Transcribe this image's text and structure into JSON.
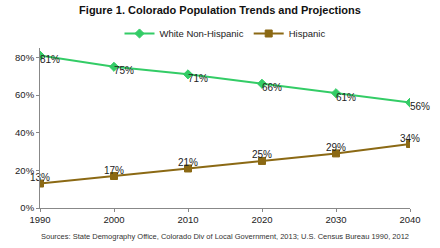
{
  "chart_data": {
    "type": "line",
    "title": "Figure 1. Colorado Population Trends and Projections",
    "x": [
      1990,
      2000,
      2010,
      2020,
      2030,
      2040
    ],
    "xlim": [
      1990,
      2040
    ],
    "xticks": [
      1990,
      2000,
      2010,
      2020,
      2030,
      2040
    ],
    "ylim": [
      0,
      85
    ],
    "yticks": [
      {
        "value": 0,
        "label": "0%"
      },
      {
        "value": 20,
        "label": "20%"
      },
      {
        "value": 40,
        "label": "40%"
      },
      {
        "value": 60,
        "label": "60%"
      },
      {
        "value": 80,
        "label": "80%"
      }
    ],
    "grid": false,
    "legend": "top",
    "data_labels": true,
    "series": [
      {
        "name": "White Non-Hispanic",
        "color": "#33cc66",
        "marker": "diamond",
        "values": [
          81,
          75,
          71,
          66,
          61,
          56
        ],
        "value_labels": [
          "81%",
          "75%",
          "71%",
          "66%",
          "61%",
          "56%"
        ]
      },
      {
        "name": "Hispanic",
        "color": "#8b6914",
        "marker": "square",
        "values": [
          13,
          17,
          21,
          25,
          29,
          34
        ],
        "value_labels": [
          "13%",
          "17%",
          "21%",
          "25%",
          "29%",
          "34%"
        ]
      }
    ],
    "annotations": [
      "Sources: State Demography Office, Colorado Div of Local Government, 2013; U.S. Census Bureau 1990, 2012"
    ]
  }
}
